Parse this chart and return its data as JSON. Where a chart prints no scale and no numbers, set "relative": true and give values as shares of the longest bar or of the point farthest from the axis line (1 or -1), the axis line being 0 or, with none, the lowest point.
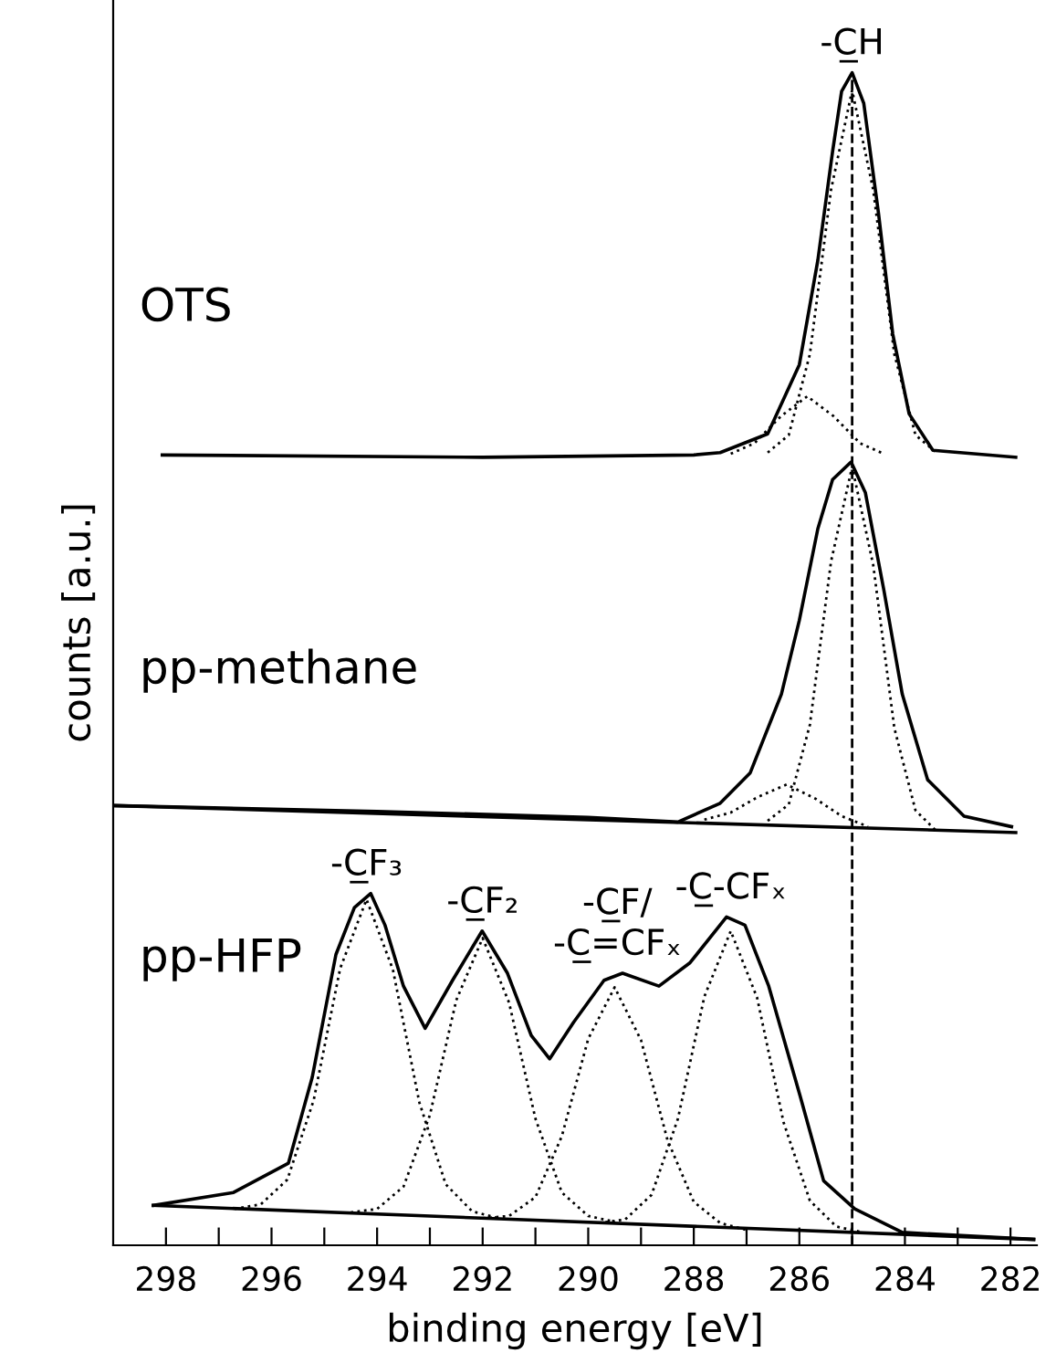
{
  "chart_data": {
    "type": "line",
    "relative": true,
    "xlabel": "binding energy [eV]",
    "ylabel": "counts [a.u.]",
    "xlim": [
      299,
      281.5
    ],
    "xticks": [
      298,
      {
        "value": 297,
        "label": null
      },
      296,
      {
        "value": 295,
        "label": null
      },
      294,
      {
        "value": 293,
        "label": null
      },
      292,
      {
        "value": 291,
        "label": null
      },
      290,
      {
        "value": 289,
        "label": null
      },
      288,
      {
        "value": 287,
        "label": null
      },
      286,
      {
        "value": 285,
        "label": null
      },
      284,
      {
        "value": 283,
        "label": null
      },
      282
    ],
    "grid": false,
    "legend": false,
    "series": [
      {
        "name": "OTS",
        "color": "#000000",
        "line_style": "solid",
        "x": [
          298.07,
          292.0,
          288.0,
          287.5,
          286.6,
          286.0,
          285.65,
          285.37,
          285.2,
          285.0,
          284.78,
          284.5,
          284.23,
          283.92,
          283.47,
          281.9
        ],
        "values": [
          0.674,
          0.672,
          0.674,
          0.676,
          0.692,
          0.751,
          0.84,
          0.933,
          0.984,
          1.0,
          0.974,
          0.88,
          0.777,
          0.709,
          0.678,
          0.672
        ]
      },
      {
        "color": "#000000",
        "line_style": "dotted",
        "x": [
          286.6,
          286.2,
          285.8,
          285.4,
          285.0,
          284.6,
          284.2,
          283.8,
          283.4
        ],
        "values": [
          0.676,
          0.691,
          0.76,
          0.9,
          0.985,
          0.9,
          0.76,
          0.691,
          0.676
        ]
      },
      {
        "color": "#000000",
        "line_style": "dotted",
        "x": [
          287.3,
          286.85,
          286.35,
          285.85,
          285.35,
          284.85,
          284.4
        ],
        "values": [
          0.675,
          0.684,
          0.707,
          0.724,
          0.707,
          0.684,
          0.675
        ]
      },
      {
        "name": "pp-methane",
        "color": "#000000",
        "line_style": "solid",
        "x": [
          299.0,
          294.0,
          290.0,
          288.3,
          287.5,
          286.93,
          286.34,
          286.0,
          285.65,
          285.37,
          285.02,
          284.75,
          284.4,
          284.05,
          283.57,
          282.88,
          281.98
        ],
        "values": [
          0.375,
          0.37,
          0.365,
          0.361,
          0.377,
          0.403,
          0.47,
          0.533,
          0.611,
          0.653,
          0.668,
          0.642,
          0.559,
          0.47,
          0.397,
          0.366,
          0.357
        ]
      },
      {
        "color": "#000000",
        "line_style": "solid",
        "x": [
          299.0,
          281.9
        ],
        "values": [
          0.375,
          0.352
        ]
      },
      {
        "color": "#000000",
        "line_style": "dotted",
        "x": [
          286.6,
          286.2,
          285.8,
          285.4,
          285.0,
          284.6,
          284.2,
          283.8,
          283.4
        ],
        "values": [
          0.362,
          0.376,
          0.444,
          0.583,
          0.664,
          0.58,
          0.441,
          0.371,
          0.353
        ]
      },
      {
        "color": "#000000",
        "line_style": "dotted",
        "x": [
          287.8,
          287.3,
          286.8,
          286.24,
          285.7,
          285.2,
          284.7
        ],
        "values": [
          0.363,
          0.369,
          0.382,
          0.393,
          0.381,
          0.366,
          0.357
        ]
      },
      {
        "name": "pp-HFP",
        "color": "#000000",
        "line_style": "solid",
        "x": [
          298.24,
          296.72,
          295.68,
          295.23,
          294.78,
          294.43,
          294.12,
          293.85,
          293.5,
          293.09,
          292.57,
          292.01,
          291.53,
          291.08,
          290.73,
          290.28,
          289.7,
          289.35,
          288.66,
          288.07,
          287.38,
          287.03,
          286.58,
          285.99,
          285.54,
          284.95,
          284.05,
          281.56
        ],
        "values": [
          0.034,
          0.045,
          0.07,
          0.143,
          0.248,
          0.288,
          0.3,
          0.273,
          0.221,
          0.185,
          0.226,
          0.268,
          0.232,
          0.179,
          0.159,
          0.19,
          0.226,
          0.232,
          0.221,
          0.241,
          0.28,
          0.273,
          0.221,
          0.128,
          0.055,
          0.031,
          0.011,
          0.005
        ]
      },
      {
        "color": "#000000",
        "line_style": "solid",
        "x": [
          298.24,
          281.56
        ],
        "values": [
          0.034,
          0.005
        ]
      },
      {
        "color": "#000000",
        "line_style": "dotted",
        "x": [
          296.7,
          296.2,
          295.7,
          295.2,
          294.7,
          294.2,
          293.7,
          293.2,
          292.7,
          292.2,
          291.7
        ],
        "values": [
          0.031,
          0.035,
          0.056,
          0.124,
          0.236,
          0.295,
          0.235,
          0.122,
          0.052,
          0.029,
          0.023
        ]
      },
      {
        "color": "#000000",
        "line_style": "dotted",
        "x": [
          294.5,
          294.0,
          293.5,
          293.0,
          292.5,
          292.0,
          291.5,
          291.0,
          290.5,
          290.0,
          289.5
        ],
        "values": [
          0.028,
          0.031,
          0.05,
          0.111,
          0.209,
          0.262,
          0.207,
          0.108,
          0.045,
          0.025,
          0.02
        ]
      },
      {
        "color": "#000000",
        "line_style": "dotted",
        "x": [
          292.0,
          291.5,
          291.0,
          290.5,
          290.0,
          289.5,
          289.0,
          288.5,
          288.0,
          287.5,
          287.0
        ],
        "values": [
          0.023,
          0.025,
          0.041,
          0.093,
          0.176,
          0.22,
          0.175,
          0.09,
          0.037,
          0.019,
          0.013
        ]
      },
      {
        "color": "#000000",
        "line_style": "dotted",
        "x": [
          289.8,
          289.3,
          288.8,
          288.3,
          287.8,
          287.3,
          286.8,
          286.3,
          285.8,
          285.3,
          284.8
        ],
        "values": [
          0.019,
          0.022,
          0.043,
          0.108,
          0.212,
          0.268,
          0.211,
          0.105,
          0.038,
          0.016,
          0.011
        ]
      }
    ],
    "ref_lines": [
      {
        "axis": "x",
        "value": 285.0,
        "color": "#000000",
        "line_style": "dashed"
      }
    ],
    "annotations": [
      {
        "text": "-C̲H",
        "x": 285.0,
        "y": 1.0
      },
      {
        "text": "-C̲F₃",
        "x": 294.2,
        "y": 0.3
      },
      {
        "text": "-C̲F₂",
        "x": 292.0,
        "y": 0.268
      },
      {
        "text": "-C̲F/\n-C̲=CFₓ",
        "x": 289.45,
        "y": 0.232
      },
      {
        "text": "-C̲-CFₓ",
        "x": 287.3,
        "y": 0.28
      }
    ]
  }
}
